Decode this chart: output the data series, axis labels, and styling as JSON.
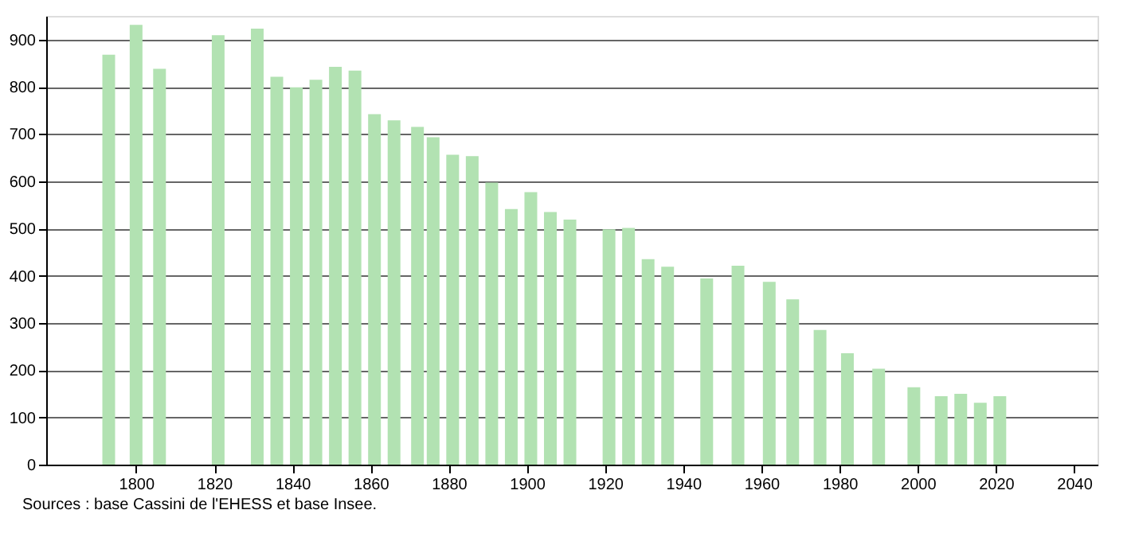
{
  "chart_data": {
    "type": "bar",
    "x": [
      1793,
      1800,
      1806,
      1821,
      1831,
      1836,
      1841,
      1846,
      1851,
      1856,
      1861,
      1866,
      1872,
      1876,
      1881,
      1886,
      1891,
      1896,
      1901,
      1906,
      1911,
      1921,
      1926,
      1931,
      1936,
      1946,
      1954,
      1962,
      1968,
      1975,
      1982,
      1990,
      1999,
      2006,
      2011,
      2016,
      2021
    ],
    "values": [
      868,
      931,
      838,
      909,
      923,
      821,
      799,
      815,
      842,
      834,
      742,
      729,
      715,
      693,
      656,
      653,
      597,
      541,
      577,
      535,
      519,
      498,
      501,
      435,
      419,
      394,
      421,
      387,
      350,
      285,
      236,
      203,
      164,
      145,
      150,
      131,
      145
    ],
    "color": "#b2e2b2",
    "xlim": [
      1777,
      2046
    ],
    "xticks": [
      1800,
      1820,
      1840,
      1860,
      1880,
      1900,
      1920,
      1940,
      1960,
      1980,
      2000,
      2020,
      2040
    ],
    "ylim": [
      0,
      950
    ],
    "yticks": [
      0,
      100,
      200,
      300,
      400,
      500,
      600,
      700,
      800,
      900
    ],
    "grid": "y",
    "annotations": [
      "Sources : base Cassini de l'EHESS et base Insee."
    ]
  }
}
